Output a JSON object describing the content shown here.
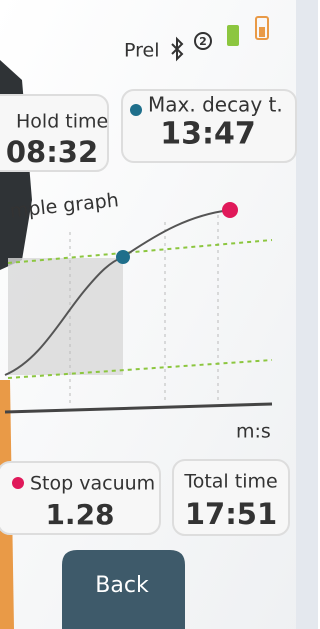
{
  "status": {
    "mode": "Prel",
    "badge": "2"
  },
  "cards": [
    {
      "label": "Hold time",
      "value": "08:32"
    },
    {
      "label": "Max. decay t.",
      "value": "13:47"
    },
    {
      "label": "Stop vacuum",
      "value": "1.28"
    },
    {
      "label": "Total time",
      "value": "17:51"
    }
  ],
  "graph": {
    "title": "mple graph",
    "x_unit": "m:s"
  },
  "button": {
    "label": "Back"
  }
}
